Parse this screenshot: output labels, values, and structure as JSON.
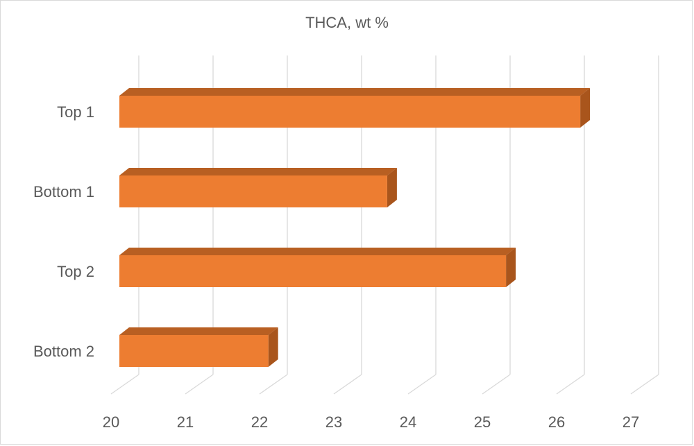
{
  "chart_data": {
    "type": "bar",
    "orientation": "horizontal",
    "title": "THCA, wt %",
    "xlabel": "",
    "ylabel": "",
    "categories": [
      "Top 1",
      "Bottom 1",
      "Top 2",
      "Bottom 2"
    ],
    "values": [
      26.3,
      23.7,
      25.3,
      22.1
    ],
    "xlim": [
      20,
      27
    ],
    "xticks": [
      "20",
      "21",
      "22",
      "23",
      "24",
      "25",
      "26",
      "27"
    ],
    "grid": true,
    "legend": "none",
    "bar_color": "#ED7D31",
    "bar_top_color": "#B85F22",
    "bar_side_color": "#A9551C"
  }
}
